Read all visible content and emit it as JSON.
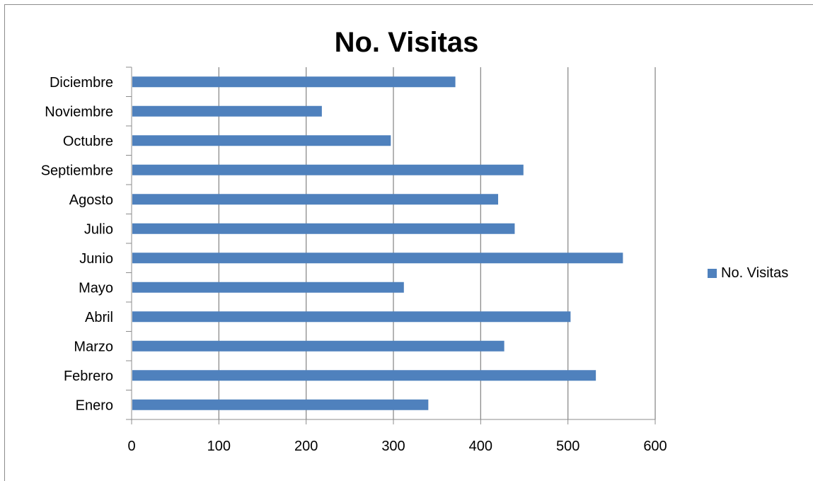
{
  "chart_data": {
    "type": "bar",
    "orientation": "horizontal",
    "title": "No. Visitas",
    "categories": [
      "Enero",
      "Febrero",
      "Marzo",
      "Abril",
      "Mayo",
      "Junio",
      "Julio",
      "Agosto",
      "Septiembre",
      "Octubre",
      "Noviembre",
      "Diciembre"
    ],
    "series": [
      {
        "name": "No. Visitas",
        "color": "#4f81bd",
        "values": [
          340,
          532,
          427,
          503,
          312,
          563,
          439,
          420,
          449,
          297,
          218,
          371
        ]
      }
    ],
    "xlim": [
      0,
      600
    ],
    "x_ticks": [
      "0",
      "100",
      "200",
      "300",
      "400",
      "500",
      "600"
    ],
    "grid": "vertical",
    "legend": "right"
  }
}
